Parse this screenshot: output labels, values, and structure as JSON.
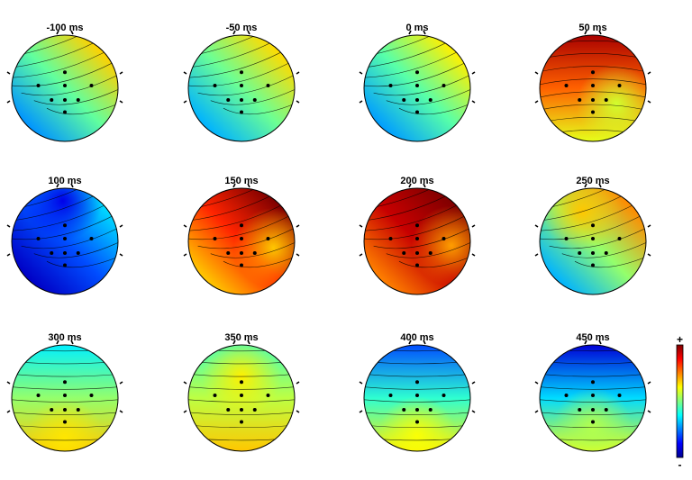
{
  "figure": {
    "colormap": [
      "#00008f",
      "#0000ff",
      "#0080ff",
      "#00ffff",
      "#80ff80",
      "#ffff00",
      "#ff8000",
      "#ff0000",
      "#800000"
    ],
    "colorbar": {
      "plus_label": "+",
      "minus_label": "-"
    },
    "head_outline_color": "#000000",
    "electrode_color": "#000000",
    "contour_color": "#000000"
  },
  "maps": [
    {
      "label": "-100 ms",
      "level": 0.47,
      "tilt": 0.2,
      "axis": "diag",
      "spot": null
    },
    {
      "label": "-50 ms",
      "level": 0.48,
      "tilt": 0.18,
      "axis": "diag",
      "spot": null
    },
    {
      "label": "0 ms",
      "level": 0.46,
      "tilt": 0.18,
      "axis": "diag",
      "spot": null
    },
    {
      "label": "50 ms",
      "level": 0.78,
      "tilt": 0.18,
      "axis": "vert-down",
      "spot": [
        0.58,
        0.72,
        0.65
      ]
    },
    {
      "label": "100 ms",
      "level": 0.2,
      "tilt": 0.14,
      "axis": "diag",
      "spot": [
        0.1,
        0.48,
        0.12
      ]
    },
    {
      "label": "150 ms",
      "level": 0.84,
      "tilt": 0.16,
      "axis": "diag",
      "spot": [
        0.68,
        0.8,
        0.56
      ]
    },
    {
      "label": "200 ms",
      "level": 0.93,
      "tilt": 0.18,
      "axis": "diag",
      "spot": [
        0.72,
        0.82,
        0.54
      ]
    },
    {
      "label": "250 ms",
      "level": 0.52,
      "tilt": 0.22,
      "axis": "diag",
      "spot": [
        0.68,
        0.4,
        0.22
      ]
    },
    {
      "label": "300 ms",
      "level": 0.52,
      "tilt": 0.16,
      "axis": "vert-up",
      "spot": [
        0.65,
        0.5,
        0.88
      ]
    },
    {
      "label": "350 ms",
      "level": 0.56,
      "tilt": 0.12,
      "axis": "vert-up",
      "spot": [
        0.64,
        0.5,
        0.3
      ]
    },
    {
      "label": "400 ms",
      "level": 0.42,
      "tilt": 0.22,
      "axis": "vert-up",
      "spot": [
        0.62,
        0.5,
        0.86
      ]
    },
    {
      "label": "450 ms",
      "level": 0.34,
      "tilt": 0.26,
      "axis": "vert-up",
      "spot": [
        0.55,
        0.5,
        0.78
      ]
    }
  ]
}
